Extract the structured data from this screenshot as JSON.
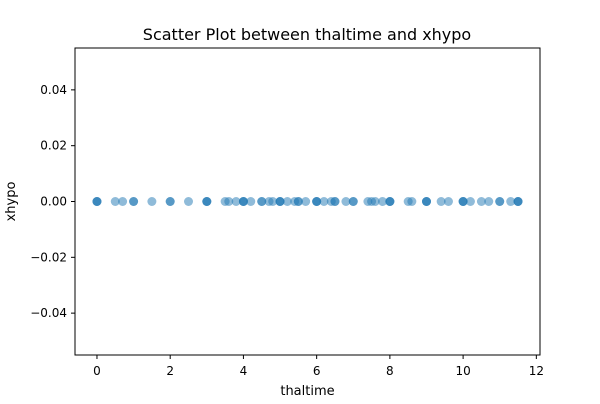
{
  "chart_data": {
    "type": "scatter",
    "title": "Scatter Plot between thaltime and xhypo",
    "xlabel": "thaltime",
    "ylabel": "xhypo",
    "xlim": [
      -0.6,
      12.1
    ],
    "ylim": [
      -0.055,
      0.055
    ],
    "xticks": [
      0,
      2,
      4,
      6,
      8,
      10,
      12
    ],
    "yticks": [
      -0.04,
      -0.02,
      0.0,
      0.02,
      0.04
    ],
    "xtick_labels": [
      "0",
      "2",
      "4",
      "6",
      "8",
      "10",
      "12"
    ],
    "ytick_labels": [
      "−0.04",
      "−0.02",
      "0.00",
      "0.02",
      "0.04"
    ],
    "grid": false,
    "marker_color": "#1f77b4",
    "marker_alpha": 0.5,
    "series": [
      {
        "x": [
          0,
          0,
          0,
          0.5,
          0.7,
          1,
          1,
          1.5,
          2,
          2,
          2.5,
          3,
          3,
          3,
          3.5,
          3.6,
          3.8,
          4,
          4,
          4,
          4.2,
          4.5,
          4.5,
          4.7,
          4.8,
          5,
          5,
          5,
          5.2,
          5.4,
          5.5,
          5.5,
          5.7,
          6,
          6,
          6,
          6.2,
          6.4,
          6.5,
          6.5,
          6.8,
          7,
          7,
          7.4,
          7.5,
          7.6,
          7.8,
          8,
          8,
          8,
          8.5,
          8.6,
          9,
          9,
          9,
          9.4,
          9.6,
          10,
          10,
          10,
          10.2,
          10.5,
          10.7,
          11,
          11,
          11.3,
          11.5,
          11.5,
          11.5
        ],
        "y": [
          0,
          0,
          0,
          0,
          0,
          0,
          0,
          0,
          0,
          0,
          0,
          0,
          0,
          0,
          0,
          0,
          0,
          0,
          0,
          0,
          0,
          0,
          0,
          0,
          0,
          0,
          0,
          0,
          0,
          0,
          0,
          0,
          0,
          0,
          0,
          0,
          0,
          0,
          0,
          0,
          0,
          0,
          0,
          0,
          0,
          0,
          0,
          0,
          0,
          0,
          0,
          0,
          0,
          0,
          0,
          0,
          0,
          0,
          0,
          0,
          0,
          0,
          0,
          0,
          0,
          0,
          0,
          0,
          0
        ]
      }
    ]
  }
}
